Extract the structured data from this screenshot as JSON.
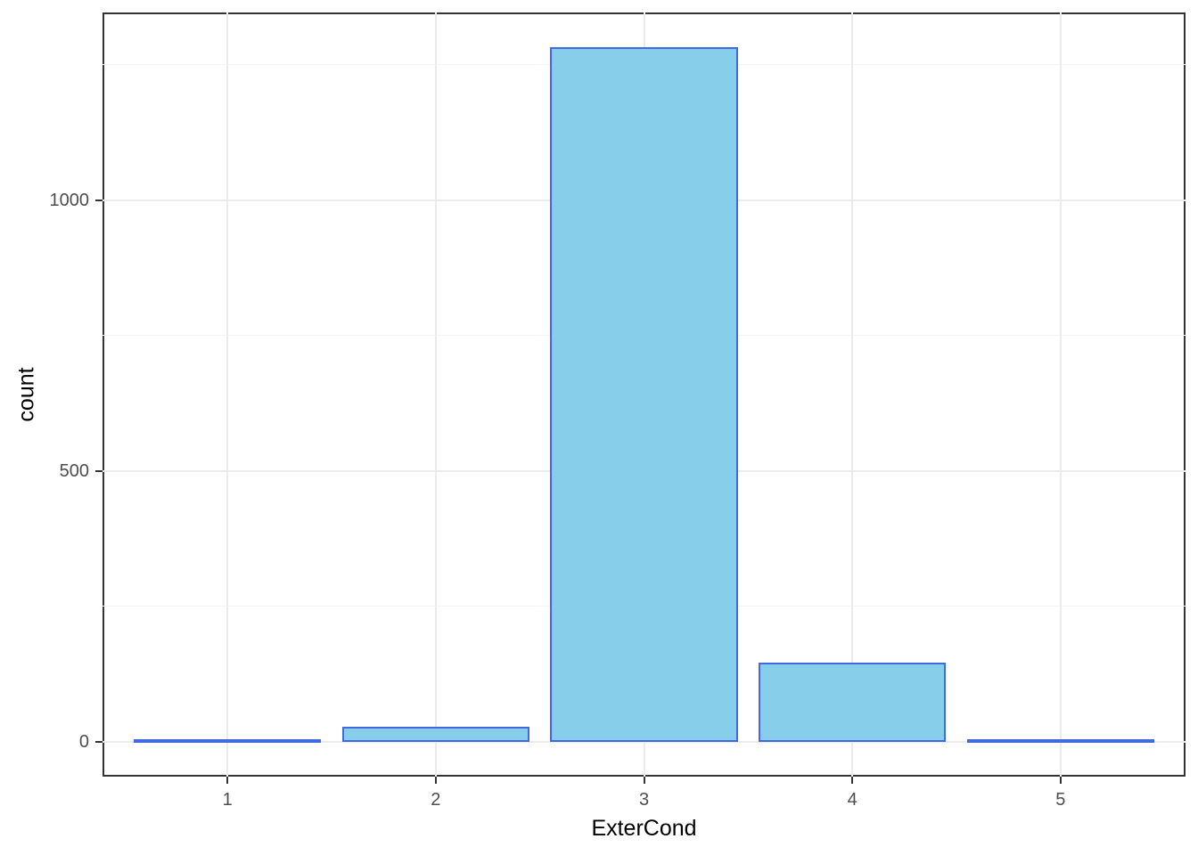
{
  "chart_data": {
    "type": "bar",
    "title": "",
    "xlabel": "ExterCond",
    "ylabel": "count",
    "categories": [
      "1",
      "2",
      "3",
      "4",
      "5"
    ],
    "values": [
      1,
      28,
      1282,
      146,
      3
    ],
    "ylim": [
      -64.1,
      1346.1
    ],
    "y_major_ticks": [
      0,
      500,
      1000
    ],
    "y_major_tick_labels": [
      "0",
      "500",
      "1000"
    ],
    "y_minor_ticks": [
      250,
      750,
      1250
    ],
    "bar_width_fraction": 0.9,
    "x_domain": [
      0.4,
      5.6
    ],
    "legend": "none",
    "grid": "on",
    "colors": {
      "bar_fill": "#87CEEB",
      "bar_stroke": "#4169E1",
      "panel_border": "#333333",
      "grid_major": "#EBEBEB",
      "grid_minor": "#F4F4F4",
      "tick_text": "#4d4d4d",
      "axis_title_text": "#000000",
      "background": "#ffffff"
    }
  }
}
